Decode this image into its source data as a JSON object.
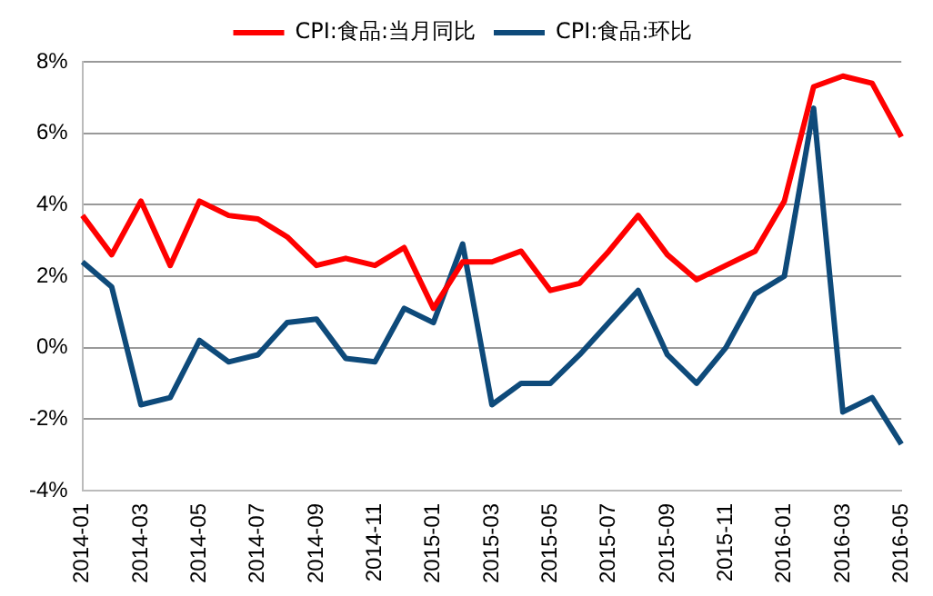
{
  "chart_data": {
    "type": "line",
    "categories": [
      "2014-01",
      null,
      "2014-03",
      null,
      "2014-05",
      null,
      "2014-07",
      null,
      "2014-09",
      null,
      "2014-11",
      null,
      "2015-01",
      null,
      "2015-03",
      null,
      "2015-05",
      null,
      "2015-07",
      null,
      "2015-09",
      null,
      "2015-11",
      null,
      "2016-01",
      null,
      "2016-03",
      null,
      "2016-05"
    ],
    "series": [
      {
        "name": "CPI:食品:当月同比",
        "color": "#ff0000",
        "values": [
          3.7,
          2.6,
          4.1,
          2.3,
          4.1,
          3.7,
          3.6,
          3.1,
          2.3,
          2.5,
          2.3,
          2.8,
          1.1,
          2.4,
          2.4,
          2.7,
          1.6,
          1.8,
          2.7,
          3.7,
          2.6,
          1.9,
          2.3,
          2.7,
          4.1,
          7.3,
          7.6,
          7.4,
          5.9
        ]
      },
      {
        "name": "CPI:食品:环比",
        "color": "#0e4a7a",
        "values": [
          2.4,
          1.7,
          -1.6,
          -1.4,
          0.2,
          -0.4,
          -0.2,
          0.7,
          0.8,
          -0.3,
          -0.4,
          1.1,
          0.7,
          2.9,
          -1.6,
          -1.0,
          -1.0,
          -0.2,
          0.7,
          1.6,
          -0.2,
          -1.0,
          0.0,
          1.5,
          2.0,
          6.7,
          -1.8,
          -1.4,
          -2.7
        ]
      }
    ],
    "ylim": [
      -4,
      8
    ],
    "yticks": [
      {
        "value": -4,
        "label": "-4%"
      },
      {
        "value": -2,
        "label": "-2%"
      },
      {
        "value": 0,
        "label": "0%"
      },
      {
        "value": 2,
        "label": "2%"
      },
      {
        "value": 4,
        "label": "4%"
      },
      {
        "value": 6,
        "label": "6%"
      },
      {
        "value": 8,
        "label": "8%"
      }
    ],
    "grid": "y",
    "legend": "top",
    "marker": "none",
    "line_style": "solid"
  }
}
